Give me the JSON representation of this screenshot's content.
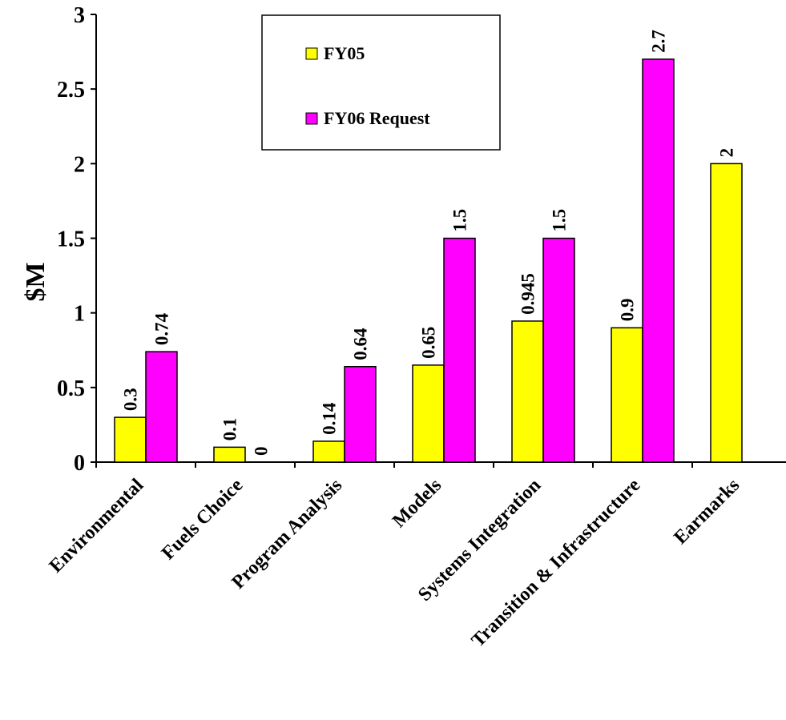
{
  "chart_data": {
    "type": "bar",
    "categories": [
      "Environmental",
      "Fuels Choice",
      "Program Analysis",
      "Models",
      "Systems Integration",
      "Transition & Infrastructure",
      "Earmarks"
    ],
    "series": [
      {
        "name": "FY05",
        "values": [
          0.3,
          0.1,
          0.14,
          0.65,
          0.945,
          0.9,
          2
        ],
        "labels": [
          "0.3",
          "0.1",
          "0.14",
          "0.65",
          "0.945",
          "0.9",
          "2"
        ],
        "color": "#ffff00"
      },
      {
        "name": "FY06 Request",
        "values": [
          0.74,
          0,
          0.64,
          1.5,
          1.5,
          2.7,
          null
        ],
        "labels": [
          "0.74",
          "0",
          "0.64",
          "1.5",
          "1.5",
          "2.7",
          null
        ],
        "color": "#ff00ff"
      }
    ],
    "ylabel": "$M",
    "xlabel": "",
    "ylim": [
      0,
      3
    ],
    "yticks": [
      "0",
      "0.5",
      "1",
      "1.5",
      "2",
      "2.5",
      "3"
    ],
    "grid": false,
    "legend_position": "top-center"
  }
}
